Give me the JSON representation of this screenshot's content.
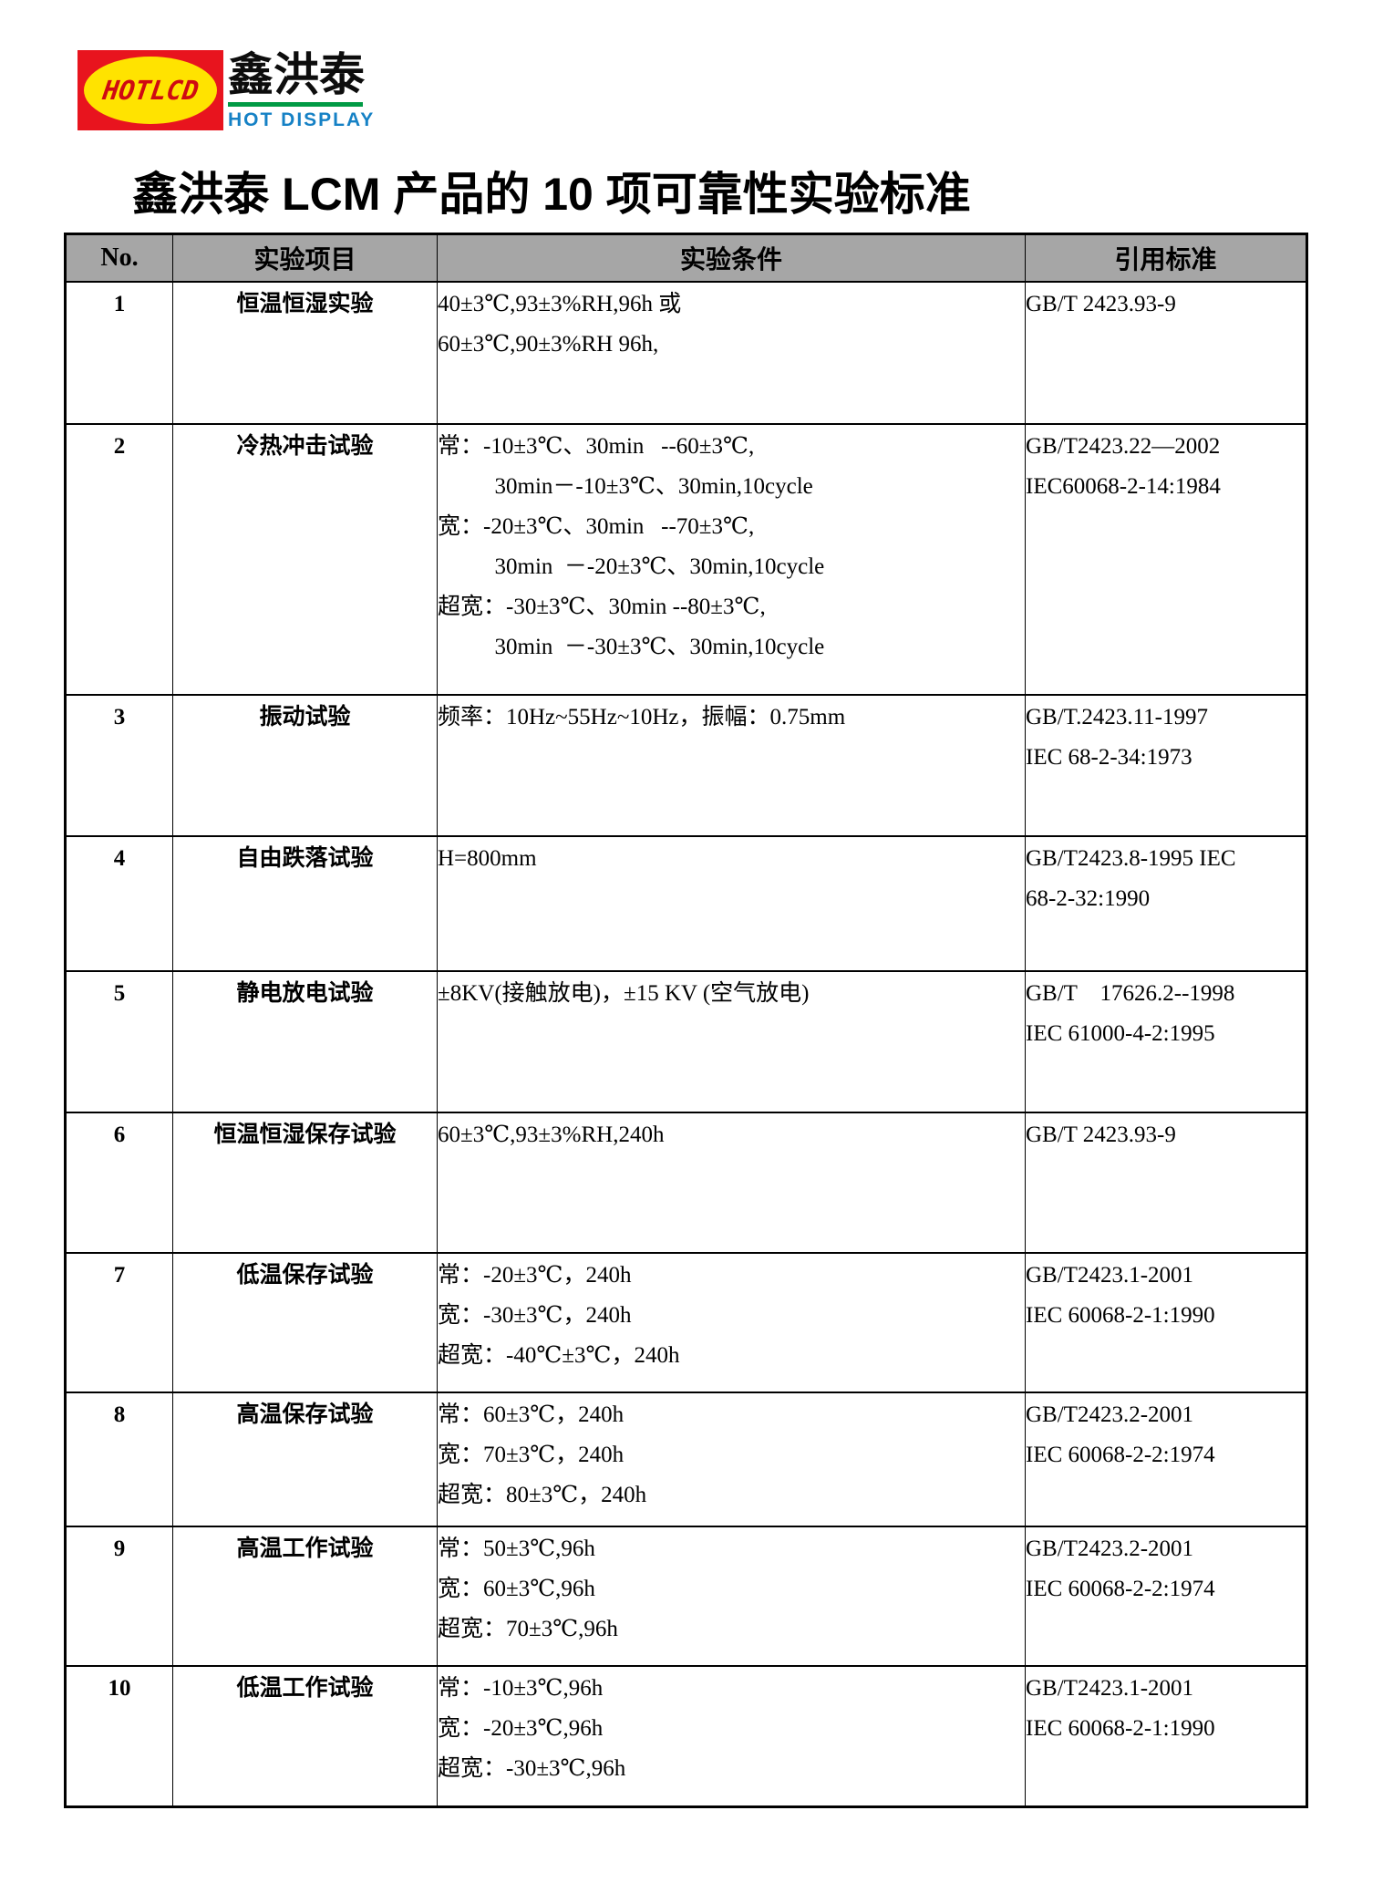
{
  "logo": {
    "badge_text": "HOTLCD",
    "company_name_cn": "鑫洪泰",
    "company_name_en": "HOT DISPLAY"
  },
  "title": "鑫洪泰 LCM 产品的 10 项可靠性实验标准",
  "colors": {
    "header_bg": "#a6a6a6",
    "border": "#000000",
    "text": "#000000",
    "logo_red": "#e8141e",
    "logo_yellow": "#ffe300",
    "logo_lcd_text": "#cf0a12",
    "logo_green": "#009a44",
    "logo_blue": "#1581c5",
    "logo_cn_text": "#0d0d0d"
  },
  "table": {
    "headers": [
      "No.",
      "实验项目",
      "实验条件",
      "引用标准"
    ],
    "rows": [
      {
        "no": "1",
        "item": "恒温恒湿实验",
        "conditions": [
          "40±3℃,93±3%RH,96h 或",
          "60±3℃,90±3%RH 96h,"
        ],
        "standards": [
          "GB/T 2423.93-9"
        ]
      },
      {
        "no": "2",
        "item": "冷热冲击试验",
        "conditions": [
          "常：-10±3℃、30min   --60±3℃,",
          "          30min－-10±3℃、30min,10cycle",
          "宽：-20±3℃、30min   --70±3℃,",
          "          30min  －-20±3℃、30min,10cycle",
          "超宽：-30±3℃、30min --80±3℃,",
          "          30min  －-30±3℃、30min,10cycle"
        ],
        "standards": [
          "GB/T2423.22—2002",
          "IEC60068-2-14:1984"
        ]
      },
      {
        "no": "3",
        "item": "振动试验",
        "conditions": [
          "频率：10Hz~55Hz~10Hz，振幅：0.75mm"
        ],
        "standards": [
          "GB/T.2423.11-1997",
          "IEC 68-2-34:1973"
        ]
      },
      {
        "no": "4",
        "item": "自由跌落试验",
        "conditions": [
          "H=800mm"
        ],
        "standards": [
          "GB/T2423.8-1995 IEC",
          "68-2-32:1990"
        ]
      },
      {
        "no": "5",
        "item": "静电放电试验",
        "conditions": [
          "±8KV(接触放电)，±15 KV (空气放电)"
        ],
        "standards": [
          "GB/T    17626.2--1998",
          "IEC 61000-4-2:1995"
        ]
      },
      {
        "no": "6",
        "item": "恒温恒湿保存试验",
        "conditions": [
          "60±3℃,93±3%RH,240h"
        ],
        "standards": [
          "GB/T 2423.93-9"
        ]
      },
      {
        "no": "7",
        "item": "低温保存试验",
        "conditions": [
          "常：-20±3℃，240h",
          "宽：-30±3℃，240h",
          "超宽：-40℃±3℃，240h"
        ],
        "standards": [
          "GB/T2423.1-2001",
          "IEC 60068-2-1:1990"
        ]
      },
      {
        "no": "8",
        "item": "高温保存试验",
        "conditions": [
          "常：60±3℃，240h",
          "宽：70±3℃，240h",
          "超宽：80±3℃，240h"
        ],
        "standards": [
          "GB/T2423.2-2001",
          "IEC 60068-2-2:1974"
        ]
      },
      {
        "no": "9",
        "item": "高温工作试验",
        "conditions": [
          "常：50±3℃,96h",
          "宽：60±3℃,96h",
          "超宽：70±3℃,96h"
        ],
        "standards": [
          "GB/T2423.2-2001",
          "IEC 60068-2-2:1974"
        ]
      },
      {
        "no": "10",
        "item": "低温工作试验",
        "conditions": [
          "常：-10±3℃,96h",
          "宽：-20±3℃,96h",
          "超宽：-30±3℃,96h"
        ],
        "standards": [
          "GB/T2423.1-2001",
          "IEC 60068-2-1:1990"
        ]
      }
    ]
  }
}
